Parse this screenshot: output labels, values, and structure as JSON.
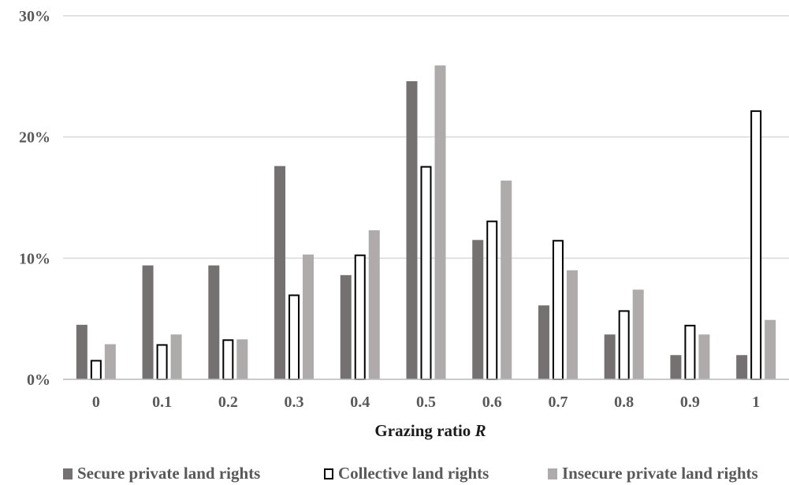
{
  "chart_data": {
    "type": "bar",
    "title": "",
    "xlabel": "Grazing ratio",
    "xlabel_var": "R",
    "ylabel": "",
    "ylim": [
      0,
      30
    ],
    "yticks": [
      "0%",
      "10%",
      "20%",
      "30%"
    ],
    "ytick_values": [
      0,
      10,
      20,
      30
    ],
    "categories": [
      "0",
      "0.1",
      "0.2",
      "0.3",
      "0.4",
      "0.5",
      "0.6",
      "0.7",
      "0.8",
      "0.9",
      "1"
    ],
    "grid": true,
    "legend_position": "bottom",
    "series": [
      {
        "name": "Secure private land rights",
        "color": "#767171",
        "style": "filled",
        "values": [
          4.5,
          9.4,
          9.4,
          17.6,
          8.6,
          24.6,
          11.5,
          6.1,
          3.7,
          2.0,
          2.0
        ]
      },
      {
        "name": "Collective land rights",
        "color": "#ffffff",
        "stroke": "#000000",
        "style": "outline",
        "values": [
          1.6,
          2.9,
          3.3,
          7.0,
          10.3,
          17.6,
          13.1,
          11.5,
          5.7,
          4.5,
          22.2
        ]
      },
      {
        "name": "Insecure private land rights",
        "color": "#afabab",
        "style": "filled",
        "values": [
          2.9,
          3.7,
          3.3,
          10.3,
          12.3,
          25.9,
          16.4,
          9.0,
          7.4,
          3.7,
          4.9
        ]
      }
    ]
  }
}
